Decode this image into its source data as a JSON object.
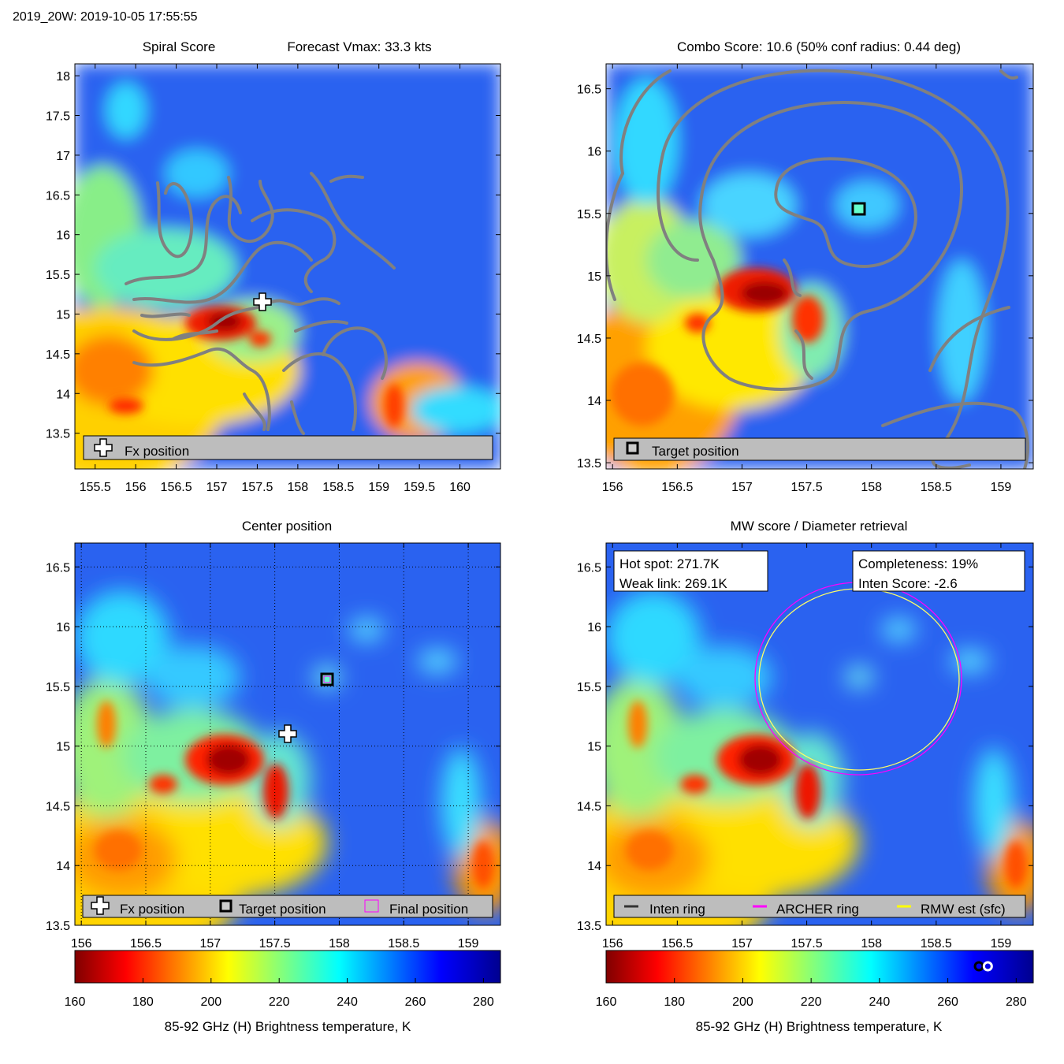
{
  "header": {
    "title": "2019_20W: 2019-10-05 17:55:55"
  },
  "colors": {
    "contour": "#808080",
    "legend_bg": "#bdbdbd",
    "archer_ring": "#ff00ff",
    "rmw_ring": "#ffff00",
    "inten_ring": "#333333"
  },
  "colorbar": {
    "min": 160,
    "max": 285,
    "ticks": [
      160,
      180,
      200,
      220,
      240,
      260,
      280
    ],
    "label": "85-92 GHz (H) Brightness temperature, K",
    "marker_values": [
      269.1,
      271.7
    ]
  },
  "panels": {
    "spiral": {
      "title_left": "Spiral Score",
      "title_right": "Forecast Vmax: 33.3 kts",
      "xlim": [
        155.25,
        160.5
      ],
      "ylim": [
        13.05,
        18.15
      ],
      "xticks": [
        "155.5",
        "156",
        "156.5",
        "157",
        "157.5",
        "158",
        "158.5",
        "159",
        "159.5",
        "160"
      ],
      "yticks": [
        "13.5",
        "14",
        "14.5",
        "15",
        "15.5",
        "16",
        "16.5",
        "17",
        "17.5",
        "18"
      ],
      "legend": "Fx position"
    },
    "combo": {
      "title": "Combo Score: 10.6  (50% conf radius: 0.44 deg)",
      "xlim": [
        155.95,
        159.25
      ],
      "ylim": [
        13.45,
        16.7
      ],
      "xticks": [
        "156",
        "156.5",
        "157",
        "157.5",
        "158",
        "158.5",
        "159"
      ],
      "yticks": [
        "13.5",
        "14",
        "14.5",
        "15",
        "15.5",
        "16",
        "16.5"
      ],
      "legend": "Target position"
    },
    "center": {
      "title": "Center position",
      "xlim": [
        155.95,
        159.25
      ],
      "ylim": [
        13.5,
        16.7
      ],
      "xticks": [
        "156",
        "156.5",
        "157",
        "157.5",
        "158",
        "158.5",
        "159"
      ],
      "yticks": [
        "13.5",
        "14",
        "14.5",
        "15",
        "15.5",
        "16",
        "16.5"
      ],
      "legend": [
        "Fx position",
        "Target position",
        "Final position"
      ]
    },
    "mw": {
      "title": "MW score / Diameter retrieval",
      "xlim": [
        155.95,
        159.25
      ],
      "ylim": [
        13.5,
        16.7
      ],
      "xticks": [
        "156",
        "156.5",
        "157",
        "157.5",
        "158",
        "158.5",
        "159"
      ],
      "yticks": [
        "13.5",
        "14",
        "14.5",
        "15",
        "15.5",
        "16",
        "16.5"
      ],
      "hot_spot": "Hot spot: 271.7K",
      "weak_link": "Weak link: 269.1K",
      "completeness": "Completeness: 19%",
      "inten_score": "Inten Score: -2.6",
      "legend": [
        "Inten ring",
        "ARCHER ring",
        "RMW est (sfc)"
      ]
    }
  },
  "positions": {
    "fx": {
      "lon": 157.6,
      "lat": 15.1
    },
    "target": {
      "lon": 157.9,
      "lat": 15.57
    },
    "archer_ring": {
      "lon": 157.9,
      "lat": 15.57,
      "r_deg": 0.78
    }
  },
  "chart_data": [
    {
      "type": "heatmap",
      "title": "Spiral Score",
      "subtitle": "Forecast Vmax: 33.3 kts",
      "xlabel": "",
      "ylabel": "",
      "xlim": [
        155.25,
        160.5
      ],
      "ylim": [
        13.05,
        18.15
      ],
      "colorbar_range": [
        160,
        285
      ],
      "annotations": [
        "Fx position"
      ]
    },
    {
      "type": "heatmap",
      "title": "Combo Score: 10.6  (50% conf radius: 0.44 deg)",
      "xlim": [
        155.95,
        159.25
      ],
      "ylim": [
        13.45,
        16.7
      ],
      "annotations": [
        "Target position"
      ]
    },
    {
      "type": "heatmap",
      "title": "Center position",
      "xlim": [
        155.95,
        159.25
      ],
      "ylim": [
        13.5,
        16.7
      ],
      "grid": true,
      "annotations": [
        "Fx position",
        "Target position",
        "Final position"
      ]
    },
    {
      "type": "heatmap",
      "title": "MW score / Diameter retrieval",
      "xlim": [
        155.95,
        159.25
      ],
      "ylim": [
        13.5,
        16.7
      ],
      "annotations": [
        "Hot spot: 271.7K",
        "Weak link: 269.1K",
        "Completeness: 19%",
        "Inten Score: -2.6"
      ]
    }
  ]
}
